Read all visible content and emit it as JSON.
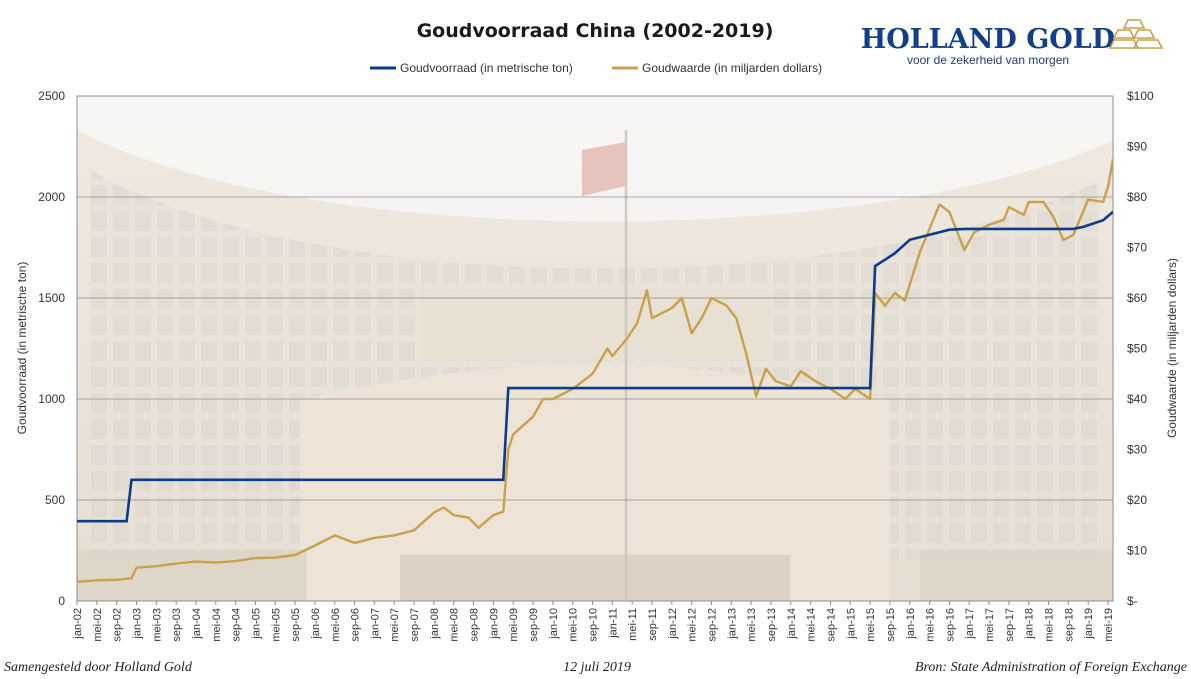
{
  "brand": {
    "name": "HOLLAND GOLD",
    "tagline": "voor de zekerheid van morgen"
  },
  "footer": {
    "left": "Samengesteld door Holland Gold",
    "center": "12 juli 2019",
    "right": "Bron: State Administration of Foreign Exchange"
  },
  "colors": {
    "reserves": "#0b3c87",
    "value": "#c9a14a",
    "grid": "#8c8c8c"
  },
  "chart_data": {
    "type": "line",
    "title": "Goudvoorraad China (2002-2019)",
    "legend_position": "top",
    "grid": true,
    "x_ticks": [
      "jan-02",
      "mei-02",
      "sep-02",
      "jan-03",
      "mei-03",
      "sep-03",
      "jan-04",
      "mei-04",
      "sep-04",
      "jan-05",
      "mei-05",
      "sep-05",
      "jan-06",
      "mei-06",
      "sep-06",
      "jan-07",
      "mei-07",
      "sep-07",
      "jan-08",
      "mei-08",
      "sep-08",
      "jan-09",
      "mei-09",
      "sep-09",
      "jan-10",
      "mei-10",
      "sep-10",
      "jan-11",
      "mei-11",
      "sep-11",
      "jan-12",
      "mei-12",
      "sep-12",
      "jan-13",
      "mei-13",
      "sep-13",
      "jan-14",
      "mei-14",
      "sep-14",
      "jan-15",
      "mei-15",
      "sep-15",
      "jan-16",
      "mei-16",
      "sep-16",
      "jan-17",
      "mei-17",
      "sep-17",
      "jan-18",
      "mei-18",
      "sep-18",
      "jan-19",
      "mei-19"
    ],
    "x_range": [
      "jan-02",
      "jun-19"
    ],
    "y_left": {
      "label": "Goudvoorraad (in metrische ton)",
      "range": [
        0,
        2500
      ],
      "ticks": [
        "0",
        "500",
        "1000",
        "1500",
        "2000",
        "2500"
      ]
    },
    "y_right": {
      "label": "Goudwaarde (in miljarden dollars)",
      "range": [
        0,
        100
      ],
      "ticks": [
        "$-",
        "$10",
        "$20",
        "$30",
        "$40",
        "$50",
        "$60",
        "$70",
        "$80",
        "$90",
        "$100"
      ]
    },
    "series": [
      {
        "name": "Goudvoorraad (in metrische ton)",
        "axis": "left",
        "points": [
          [
            "jan-02",
            395
          ],
          [
            "nov-02",
            395
          ],
          [
            "dec-02",
            600
          ],
          [
            "mrt-09",
            600
          ],
          [
            "apr-09",
            1054
          ],
          [
            "mei-15",
            1054
          ],
          [
            "jun-15",
            1658
          ],
          [
            "okt-15",
            1722
          ],
          [
            "jan-16",
            1788
          ],
          [
            "sep-16",
            1838
          ],
          [
            "dec-16",
            1842
          ],
          [
            "okt-18",
            1842
          ],
          [
            "dec-18",
            1852
          ],
          [
            "apr-19",
            1885
          ],
          [
            "jun-19",
            1926
          ]
        ]
      },
      {
        "name": "Goudwaarde (in miljarden dollars)",
        "axis": "right",
        "points": [
          [
            "jan-02",
            3.8
          ],
          [
            "mei-02",
            4.1
          ],
          [
            "sep-02",
            4.2
          ],
          [
            "dec-02",
            4.5
          ],
          [
            "jan-03",
            6.6
          ],
          [
            "mei-03",
            6.9
          ],
          [
            "sep-03",
            7.4
          ],
          [
            "jan-04",
            7.8
          ],
          [
            "mei-04",
            7.6
          ],
          [
            "sep-04",
            7.9
          ],
          [
            "jan-05",
            8.5
          ],
          [
            "mei-05",
            8.6
          ],
          [
            "sep-05",
            9.1
          ],
          [
            "jan-06",
            11.0
          ],
          [
            "mei-06",
            13.0
          ],
          [
            "sep-06",
            11.5
          ],
          [
            "jan-07",
            12.5
          ],
          [
            "mei-07",
            13.0
          ],
          [
            "sep-07",
            14.0
          ],
          [
            "jan-08",
            17.5
          ],
          [
            "mrt-08",
            18.5
          ],
          [
            "mei-08",
            17.0
          ],
          [
            "aug-08",
            16.5
          ],
          [
            "okt-08",
            14.5
          ],
          [
            "jan-09",
            17.0
          ],
          [
            "mrt-09",
            17.7
          ],
          [
            "apr-09",
            30.0
          ],
          [
            "mei-09",
            33.0
          ],
          [
            "sep-09",
            36.5
          ],
          [
            "nov-09",
            40.0
          ],
          [
            "jan-10",
            40.0
          ],
          [
            "mei-10",
            42.0
          ],
          [
            "sep-10",
            45.0
          ],
          [
            "dec-10",
            50.0
          ],
          [
            "jan-11",
            48.5
          ],
          [
            "apr-11",
            52.0
          ],
          [
            "jun-11",
            55.0
          ],
          [
            "aug-11",
            61.5
          ],
          [
            "sep-11",
            56.0
          ],
          [
            "jan-12",
            58.0
          ],
          [
            "mrt-12",
            60.0
          ],
          [
            "mei-12",
            53.0
          ],
          [
            "jul-12",
            56.0
          ],
          [
            "sep-12",
            60.0
          ],
          [
            "dec-12",
            58.5
          ],
          [
            "feb-13",
            56.0
          ],
          [
            "apr-13",
            49.0
          ],
          [
            "jun-13",
            40.5
          ],
          [
            "aug-13",
            46.0
          ],
          [
            "okt-13",
            43.5
          ],
          [
            "jan-14",
            42.5
          ],
          [
            "mrt-14",
            45.5
          ],
          [
            "jun-14",
            43.5
          ],
          [
            "sep-14",
            42.0
          ],
          [
            "dec-14",
            40.0
          ],
          [
            "feb-15",
            42.0
          ],
          [
            "mei-15",
            40.0
          ],
          [
            "jun-15",
            61.0
          ],
          [
            "aug-15",
            58.5
          ],
          [
            "okt-15",
            61.0
          ],
          [
            "dec-15",
            59.5
          ],
          [
            "mrt-16",
            69.0
          ],
          [
            "jul-16",
            78.5
          ],
          [
            "sep-16",
            77.0
          ],
          [
            "dec-16",
            69.5
          ],
          [
            "feb-17",
            73.0
          ],
          [
            "mei-17",
            74.5
          ],
          [
            "aug-17",
            75.5
          ],
          [
            "sep-17",
            78.0
          ],
          [
            "dec-17",
            76.5
          ],
          [
            "jan-18",
            79.0
          ],
          [
            "apr-18",
            79.0
          ],
          [
            "jun-18",
            76.0
          ],
          [
            "aug-18",
            71.5
          ],
          [
            "okt-18",
            72.5
          ],
          [
            "jan-19",
            79.5
          ],
          [
            "apr-19",
            79.0
          ],
          [
            "mei-19",
            82.0
          ],
          [
            "jun-19",
            87.5
          ]
        ]
      }
    ]
  }
}
